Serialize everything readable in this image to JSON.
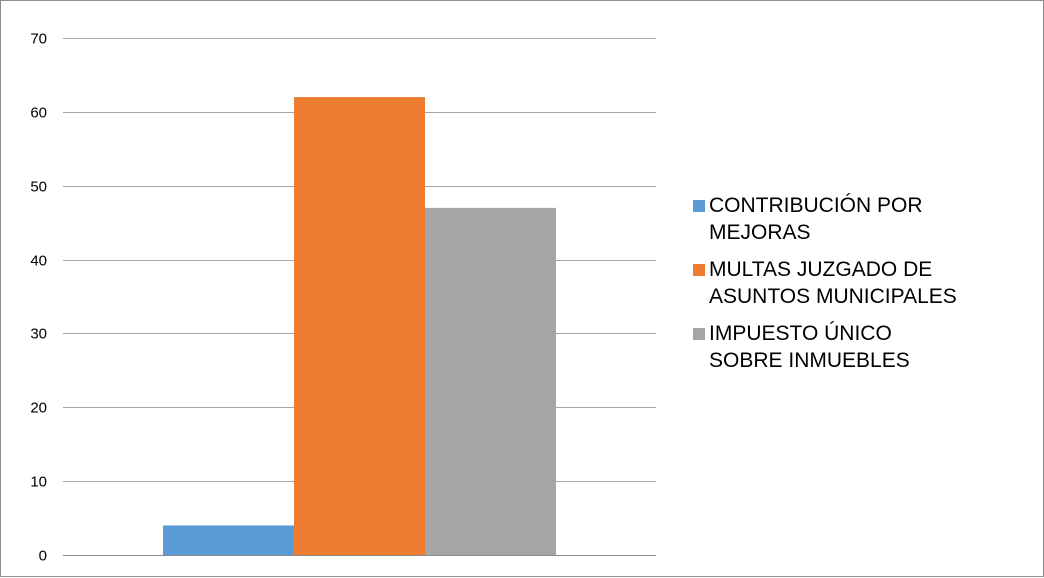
{
  "chart_data": {
    "type": "bar",
    "title": "",
    "xlabel": "",
    "ylabel": "",
    "ylim": [
      0,
      70
    ],
    "yticks": [
      0,
      10,
      20,
      30,
      40,
      50,
      60,
      70
    ],
    "grid": true,
    "legend_position": "right",
    "categories": [
      ""
    ],
    "series": [
      {
        "name": "CONTRIBUCIÓN POR\nMEJORAS",
        "color": "#5b9bd5",
        "values": [
          4
        ]
      },
      {
        "name": "MULTAS JUZGADO DE\nASUNTOS MUNICIPALES",
        "color": "#ed7d31",
        "values": [
          62
        ]
      },
      {
        "name": "IMPUESTO ÚNICO\nSOBRE INMUEBLES",
        "color": "#a5a5a5",
        "values": [
          47
        ]
      }
    ]
  }
}
